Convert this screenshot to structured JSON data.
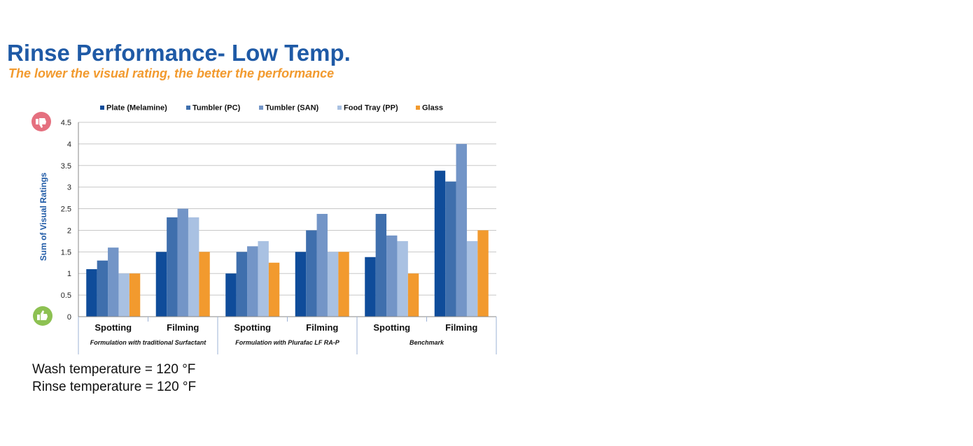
{
  "header": {
    "title": "Rinse Performance- Low Temp.",
    "subtitle": "The lower the visual rating, the better the performance"
  },
  "notes": {
    "wash": "Wash temperature = 120 °F",
    "rinse": "Rinse temperature = 120 °F"
  },
  "icons": {
    "top": "thumbs-down-icon",
    "bottom": "thumbs-up-icon",
    "top_color": "#e5707f",
    "bottom_color": "#8dc152"
  },
  "chart_data": {
    "type": "bar",
    "ylabel": "Sum of Visual Ratings",
    "ylim": [
      0,
      4.5
    ],
    "yticks": [
      "0",
      "0.5",
      "1",
      "1.5",
      "2",
      "2.5",
      "3",
      "3.5",
      "4",
      "4.5"
    ],
    "grid": true,
    "legend_position": "top",
    "categories": [
      "Spotting",
      "Filming",
      "Spotting",
      "Filming",
      "Spotting",
      "Filming"
    ],
    "groups": [
      {
        "label": "Formulation with traditional Surfactant",
        "span": [
          0,
          1
        ]
      },
      {
        "label": "Formulation with Plurafac LF RA-P",
        "span": [
          2,
          3
        ]
      },
      {
        "label": "Benchmark",
        "span": [
          4,
          5
        ]
      }
    ],
    "series": [
      {
        "name": "Plate (Melamine)",
        "color": "#0f4c9a",
        "values": [
          1.1,
          1.5,
          1.0,
          1.5,
          1.38,
          3.38
        ]
      },
      {
        "name": "Tumbler (PC)",
        "color": "#3f6fad",
        "values": [
          1.3,
          2.3,
          1.5,
          2.0,
          2.38,
          3.13
        ]
      },
      {
        "name": "Tumbler (SAN)",
        "color": "#7395c7",
        "values": [
          1.6,
          2.5,
          1.63,
          2.38,
          1.88,
          4.0
        ]
      },
      {
        "name": "Food Tray (PP)",
        "color": "#a9c1e2",
        "values": [
          1.0,
          2.3,
          1.75,
          1.5,
          1.75,
          1.75
        ]
      },
      {
        "name": "Glass",
        "color": "#f29a2e",
        "values": [
          1.0,
          1.5,
          1.25,
          1.5,
          1.0,
          2.0
        ]
      }
    ]
  }
}
